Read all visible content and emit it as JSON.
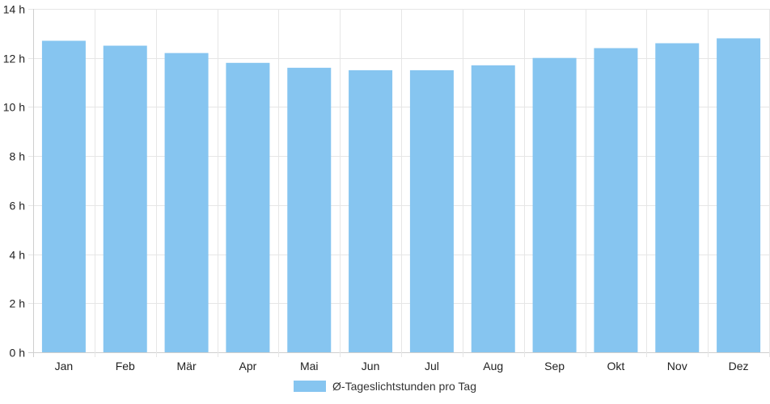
{
  "chart_data": {
    "type": "bar",
    "categories": [
      "Jan",
      "Feb",
      "Mär",
      "Apr",
      "Mai",
      "Jun",
      "Jul",
      "Aug",
      "Sep",
      "Okt",
      "Nov",
      "Dez"
    ],
    "series": [
      {
        "name": "Ø-Tageslichtstunden pro Tag",
        "values": [
          12.7,
          12.5,
          12.2,
          11.8,
          11.6,
          11.5,
          11.5,
          11.7,
          12.0,
          12.4,
          12.6,
          12.8
        ]
      }
    ],
    "ylim": [
      0,
      14
    ],
    "yticks": [
      "0 h",
      "2 h",
      "4 h",
      "6 h",
      "8 h",
      "10 h",
      "12 h",
      "14 h"
    ],
    "ytick_values": [
      0,
      2,
      4,
      6,
      8,
      10,
      12,
      14
    ],
    "grid": true,
    "legend_position": "bottom",
    "colors": {
      "bar": "#86c5f0",
      "grid": "#e6e6e6",
      "axis": "#cfcfcf"
    }
  }
}
